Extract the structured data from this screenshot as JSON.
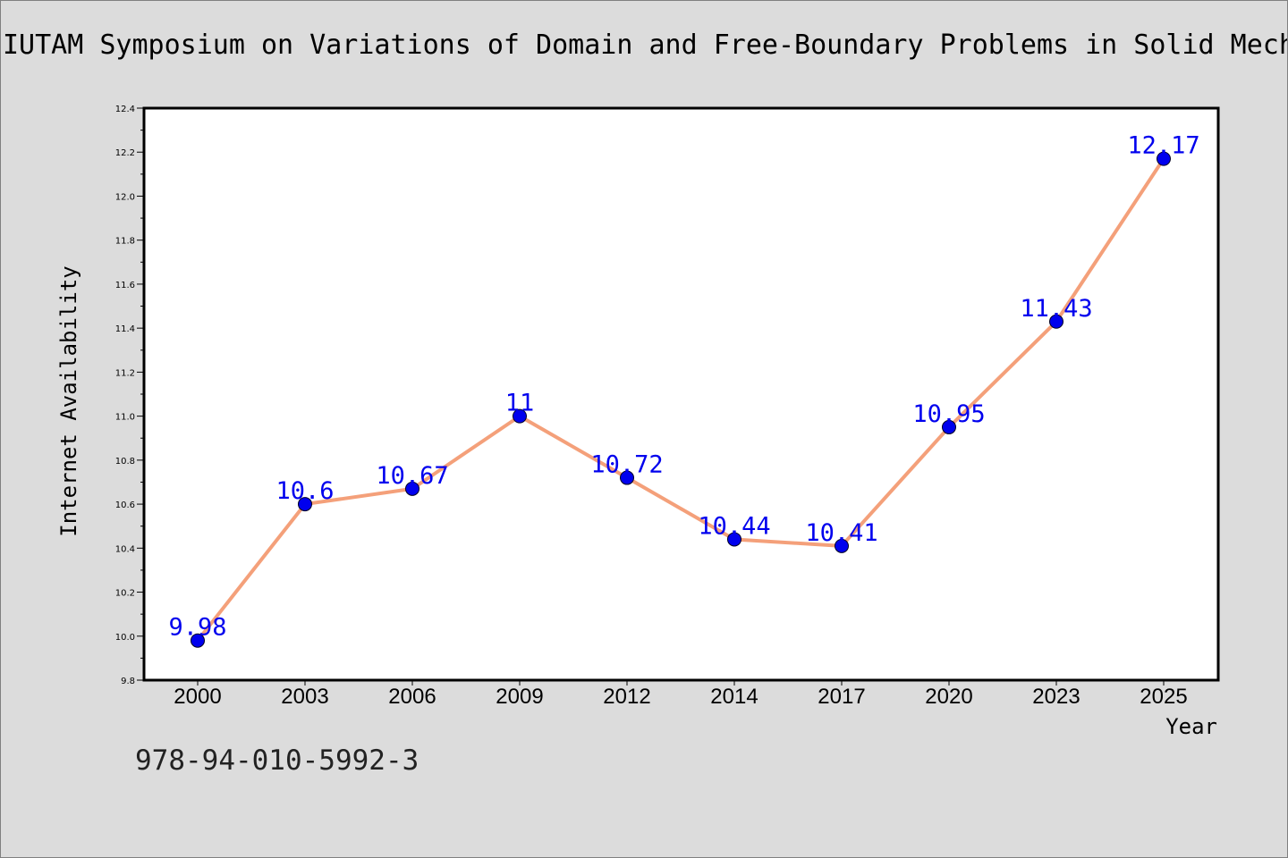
{
  "chart_data": {
    "type": "line",
    "title": "IUTAM Symposium on Variations of Domain and Free-Boundary Problems in Solid Mech",
    "xlabel": "Year",
    "ylabel": "Internet Availability",
    "categories": [
      "2000",
      "2003",
      "2006",
      "2009",
      "2012",
      "2014",
      "2017",
      "2020",
      "2023",
      "2025"
    ],
    "values": [
      9.98,
      10.6,
      10.67,
      11,
      10.72,
      10.44,
      10.41,
      10.95,
      11.43,
      12.17
    ],
    "value_labels": [
      "9.98",
      "10.6",
      "10.67",
      "11",
      "10.72",
      "10.44",
      "10.41",
      "10.95",
      "11.43",
      "12.17"
    ],
    "ylim": [
      9.8,
      12.4
    ],
    "yticks": [
      "9.8",
      "10.0",
      "10.2",
      "10.4",
      "10.6",
      "10.8",
      "11.0",
      "11.2",
      "11.4",
      "11.6",
      "11.8",
      "12.0",
      "12.2",
      "12.4"
    ],
    "grid": false,
    "legend": "none",
    "line_color": "#f4a07a",
    "marker_color": "#0000ee",
    "label_color": "#0000ee"
  },
  "footer": {
    "isbn": "978-94-010-5992-3"
  }
}
